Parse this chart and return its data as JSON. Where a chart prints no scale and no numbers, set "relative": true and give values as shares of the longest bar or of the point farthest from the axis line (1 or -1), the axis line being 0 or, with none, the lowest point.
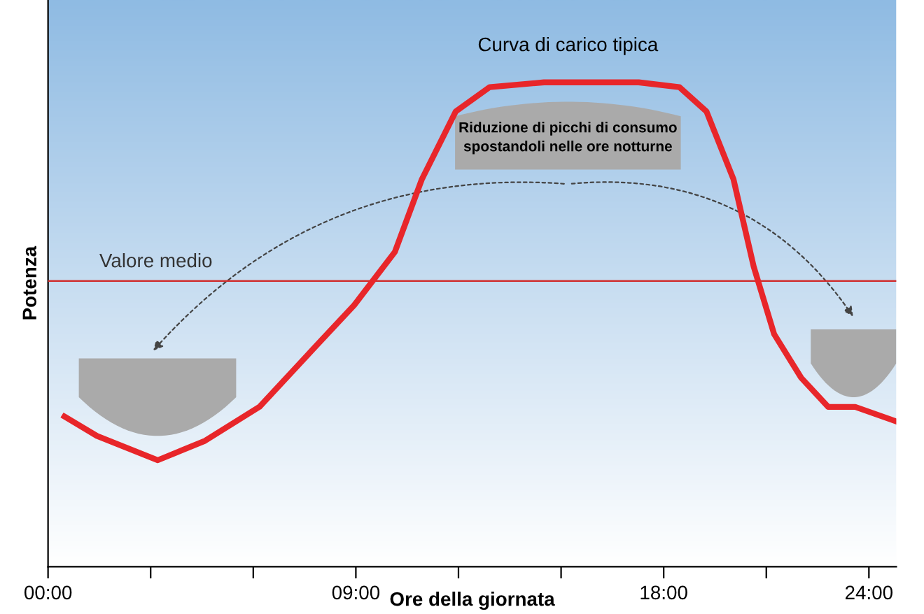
{
  "chart_data": {
    "type": "line",
    "relative": true,
    "xlabel": "Ore della giornata",
    "ylabel": "Potenza",
    "x": [
      0.48,
      1.43,
      3.21,
      4.59,
      6.18,
      7.76,
      8.95,
      10.14,
      10.93,
      11.92,
      12.91,
      14.5,
      17.27,
      18.46,
      19.25,
      20.04,
      20.63,
      21.23,
      22.02,
      22.81,
      23.6,
      24.8
    ],
    "series": [
      {
        "color": "#e8262a",
        "values": [
          0.31,
          0.27,
          0.22,
          0.26,
          0.33,
          0.45,
          0.54,
          0.65,
          0.8,
          0.94,
          0.99,
          1.0,
          1.0,
          0.99,
          0.94,
          0.8,
          0.62,
          0.48,
          0.39,
          0.33,
          0.33,
          0.3
        ]
      }
    ],
    "xlim": [
      0,
      24.8
    ],
    "xticks": [
      {
        "value": 0,
        "label": "00:00"
      },
      {
        "value": 3,
        "label": null
      },
      {
        "value": 6,
        "label": null
      },
      {
        "value": 9,
        "label": "09:00"
      },
      {
        "value": 12,
        "label": null
      },
      {
        "value": 15,
        "label": null
      },
      {
        "value": 18,
        "label": "18:00"
      },
      {
        "value": 21,
        "label": null
      },
      {
        "value": 24,
        "label": "24:00"
      }
    ],
    "ref_lines": [
      {
        "axis": "y",
        "value": 0.59,
        "label": "Valore medio",
        "color": "#d03030",
        "line_style": "solid"
      }
    ],
    "annotations": [
      {
        "text": "Curva di carico tipica",
        "x": 15.2,
        "y": 1.0
      },
      "Riduzione di picchi di consumo\nspostandoli nelle ore notturne"
    ],
    "tick_labels": "x",
    "legend": false,
    "grid": false,
    "marker": "none",
    "line_style": "solid"
  }
}
